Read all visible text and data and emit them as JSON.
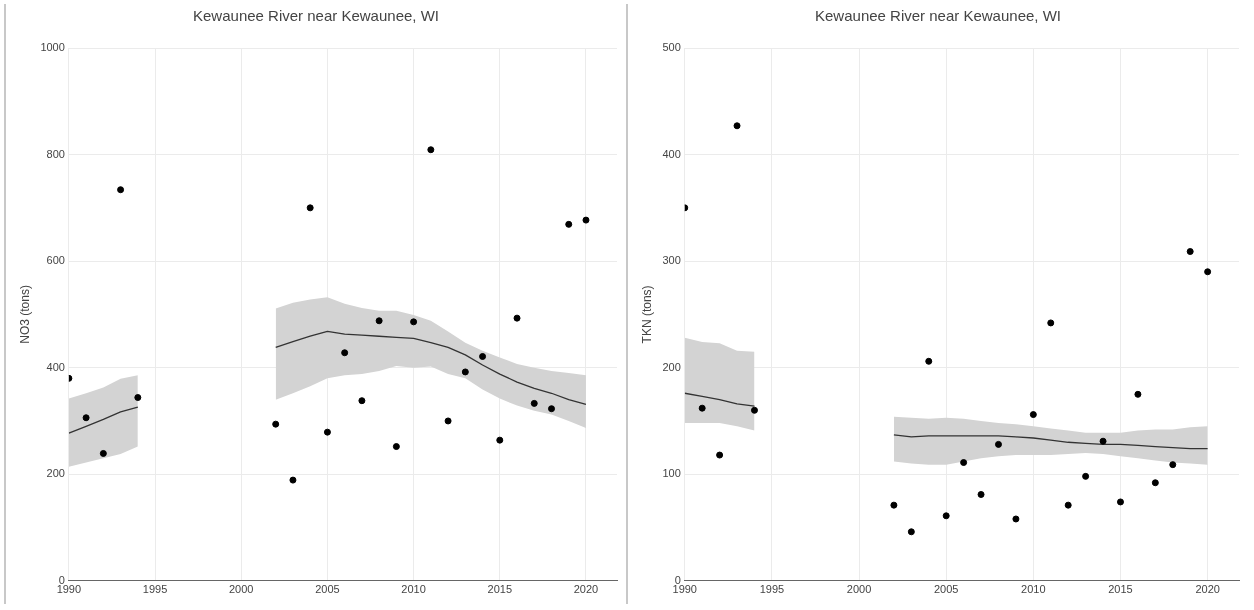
{
  "chart_data": [
    {
      "type": "scatter",
      "title": "Kewaunee River near Kewaunee, WI",
      "ylabel": "NO3 (tons)",
      "xlim": [
        1990,
        2021.8
      ],
      "xticks": [
        1990,
        1995,
        2000,
        2005,
        2010,
        2015,
        2020
      ],
      "ylim": [
        0,
        1000
      ],
      "yticks": [
        0,
        200,
        400,
        600,
        800,
        1000
      ],
      "grid": true,
      "legend": false,
      "series": [
        {
          "type": "scatter",
          "marker": "circle",
          "color": "#000000",
          "x": [
            1990,
            1991,
            1992,
            1993,
            1994,
            2002,
            2003,
            2004,
            2005,
            2006,
            2007,
            2008,
            2009,
            2010,
            2011,
            2012,
            2013,
            2014,
            2015,
            2016,
            2017,
            2018,
            2019,
            2020
          ],
          "values": [
            380,
            306,
            239,
            734,
            344,
            294,
            189,
            700,
            279,
            428,
            338,
            488,
            252,
            486,
            809,
            300,
            392,
            421,
            264,
            493,
            333,
            323,
            669,
            677
          ]
        },
        {
          "type": "line",
          "marker": "none",
          "color": "#333333",
          "x": [
            1990,
            1991,
            1992,
            1993,
            1994
          ],
          "values": [
            277,
            290,
            303,
            317,
            326
          ],
          "lower": [
            214,
            222,
            230,
            238,
            252
          ],
          "upper": [
            342,
            352,
            363,
            379,
            386
          ]
        },
        {
          "type": "line",
          "marker": "none",
          "color": "#333333",
          "x": [
            2002,
            2003,
            2004,
            2005,
            2006,
            2007,
            2008,
            2009,
            2010,
            2011,
            2012,
            2013,
            2014,
            2015,
            2016,
            2017,
            2018,
            2019,
            2020
          ],
          "values": [
            438,
            449,
            459,
            468,
            463,
            461,
            459,
            457,
            455,
            447,
            438,
            424,
            405,
            388,
            373,
            361,
            352,
            340,
            331
          ],
          "lower": [
            340,
            352,
            365,
            380,
            386,
            388,
            394,
            403,
            400,
            402,
            388,
            380,
            359,
            342,
            329,
            319,
            312,
            300,
            287
          ],
          "upper": [
            511,
            522,
            528,
            532,
            520,
            512,
            507,
            507,
            499,
            488,
            468,
            447,
            432,
            419,
            407,
            400,
            394,
            390,
            386
          ]
        }
      ]
    },
    {
      "type": "scatter",
      "title": "Kewaunee River near Kewaunee, WI",
      "ylabel": "TKN (tons)",
      "xlim": [
        1990,
        2021.8
      ],
      "xticks": [
        1990,
        1995,
        2000,
        2005,
        2010,
        2015,
        2020
      ],
      "ylim": [
        0,
        500
      ],
      "yticks": [
        0,
        100,
        200,
        300,
        400,
        500
      ],
      "grid": true,
      "legend": false,
      "series": [
        {
          "type": "scatter",
          "marker": "circle",
          "color": "#000000",
          "x": [
            1990,
            1991,
            1992,
            1993,
            1994,
            2002,
            2003,
            2004,
            2005,
            2006,
            2007,
            2008,
            2009,
            2010,
            2011,
            2012,
            2013,
            2014,
            2015,
            2016,
            2017,
            2018,
            2019,
            2020
          ],
          "values": [
            350,
            162,
            118,
            427,
            160,
            71,
            46,
            206,
            61,
            111,
            81,
            128,
            58,
            156,
            242,
            71,
            98,
            131,
            74,
            175,
            92,
            109,
            309,
            290
          ]
        },
        {
          "type": "line",
          "marker": "none",
          "color": "#333333",
          "x": [
            1990,
            1991,
            1992,
            1993,
            1994
          ],
          "values": [
            176,
            173,
            170,
            166,
            164
          ],
          "lower": [
            148,
            148,
            148,
            145,
            141
          ],
          "upper": [
            228,
            224,
            223,
            216,
            215
          ]
        },
        {
          "type": "line",
          "marker": "none",
          "color": "#333333",
          "x": [
            2002,
            2003,
            2004,
            2005,
            2006,
            2007,
            2008,
            2009,
            2010,
            2011,
            2012,
            2013,
            2014,
            2015,
            2016,
            2017,
            2018,
            2019,
            2020
          ],
          "values": [
            137,
            135,
            136,
            136,
            136,
            136,
            136,
            135,
            134,
            132,
            130,
            129,
            128,
            128,
            127,
            126,
            125,
            124,
            124
          ],
          "lower": [
            112,
            110,
            109,
            109,
            112,
            115,
            117,
            118,
            118,
            118,
            119,
            120,
            119,
            117,
            115,
            113,
            111,
            110,
            109
          ],
          "upper": [
            154,
            153,
            152,
            153,
            152,
            150,
            148,
            147,
            145,
            143,
            141,
            139,
            139,
            139,
            141,
            142,
            142,
            144,
            145
          ]
        }
      ]
    }
  ]
}
